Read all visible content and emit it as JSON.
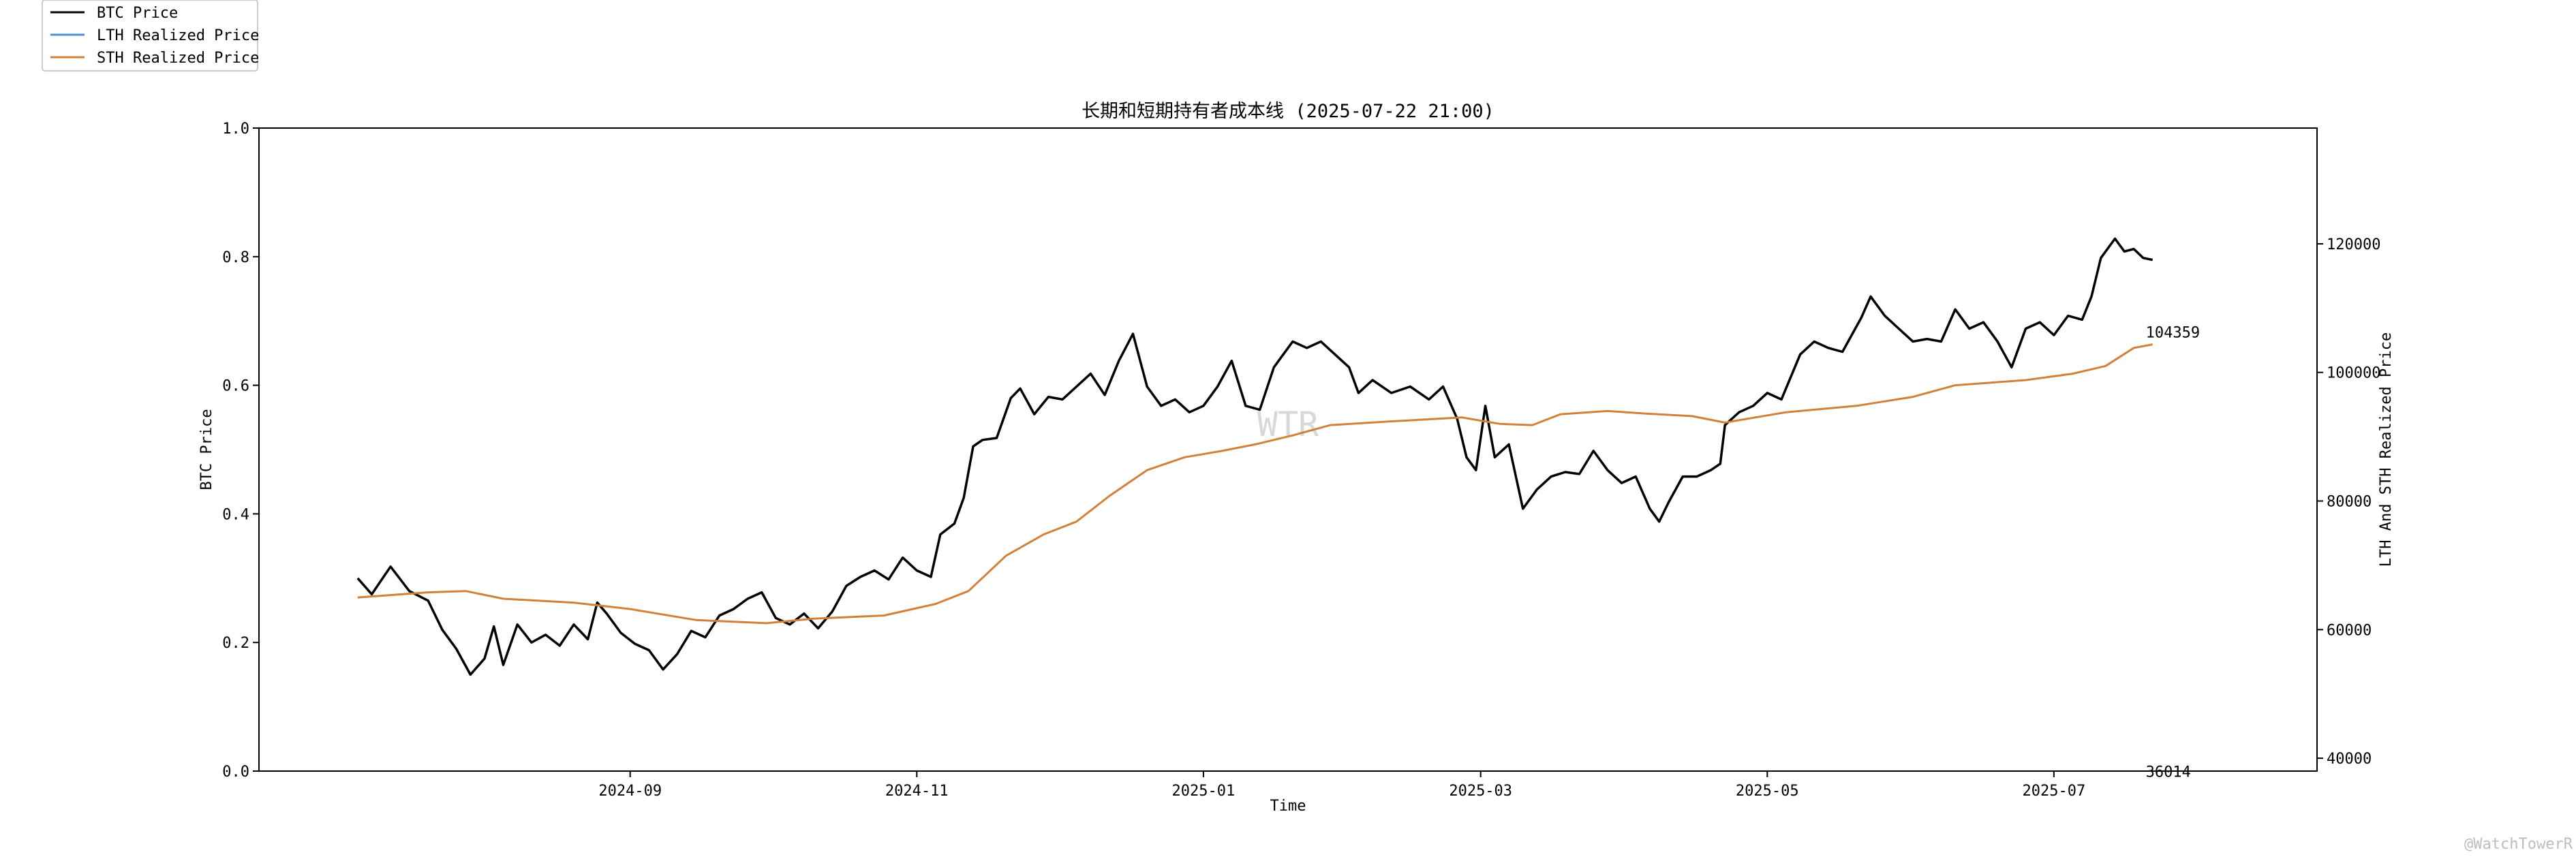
{
  "chart_data": {
    "type": "line",
    "title": "长期和短期持有者成本线 (2025-07-22 21:00)",
    "xlabel": "Time",
    "ylabel_left": "BTC Price",
    "ylabel_right": "LTH And STH Realized Price",
    "left_ylim": [
      0.0,
      1.0
    ],
    "left_yticks": [
      "0.0",
      "0.2",
      "0.4",
      "0.6",
      "0.8",
      "1.0"
    ],
    "right_ylim": [
      38000,
      138000
    ],
    "right_yticks": [
      40000,
      60000,
      80000,
      100000,
      120000
    ],
    "x_range": [
      "2024-06-14",
      "2025-08-26"
    ],
    "x_ticks": [
      "2024-09",
      "2024-11",
      "2025-01",
      "2025-03",
      "2025-05",
      "2025-07"
    ],
    "grid": false,
    "legend_position": "top-left",
    "watermark": "WTR",
    "credit": "@WatchTowerR",
    "annotations": [
      {
        "text": "104359",
        "date": "2025-07-22",
        "value": 104359,
        "series": "STH Realized Price"
      },
      {
        "text": "36014",
        "date": "2025-07-22",
        "value": 36014,
        "series": "LTH Realized Price"
      }
    ],
    "series": [
      {
        "name": "BTC Price",
        "color": "#000000",
        "points": [
          [
            "2024-07-05",
            68000
          ],
          [
            "2024-07-08",
            65500
          ],
          [
            "2024-07-12",
            69800
          ],
          [
            "2024-07-16",
            66000
          ],
          [
            "2024-07-20",
            64500
          ],
          [
            "2024-07-23",
            60000
          ],
          [
            "2024-07-26",
            57000
          ],
          [
            "2024-07-29",
            53000
          ],
          [
            "2024-08-01",
            55500
          ],
          [
            "2024-08-03",
            60500
          ],
          [
            "2024-08-05",
            54500
          ],
          [
            "2024-08-08",
            60800
          ],
          [
            "2024-08-11",
            58000
          ],
          [
            "2024-08-14",
            59200
          ],
          [
            "2024-08-17",
            57500
          ],
          [
            "2024-08-20",
            60800
          ],
          [
            "2024-08-23",
            58500
          ],
          [
            "2024-08-25",
            64200
          ],
          [
            "2024-08-27",
            62500
          ],
          [
            "2024-08-30",
            59500
          ],
          [
            "2024-09-02",
            57800
          ],
          [
            "2024-09-05",
            56800
          ],
          [
            "2024-09-08",
            53800
          ],
          [
            "2024-09-11",
            56200
          ],
          [
            "2024-09-14",
            59800
          ],
          [
            "2024-09-17",
            58800
          ],
          [
            "2024-09-20",
            62200
          ],
          [
            "2024-09-23",
            63200
          ],
          [
            "2024-09-26",
            64800
          ],
          [
            "2024-09-29",
            65800
          ],
          [
            "2024-10-02",
            61800
          ],
          [
            "2024-10-05",
            60800
          ],
          [
            "2024-10-08",
            62500
          ],
          [
            "2024-10-11",
            60200
          ],
          [
            "2024-10-14",
            62800
          ],
          [
            "2024-10-17",
            66800
          ],
          [
            "2024-10-20",
            68200
          ],
          [
            "2024-10-23",
            69200
          ],
          [
            "2024-10-26",
            67800
          ],
          [
            "2024-10-29",
            71200
          ],
          [
            "2024-11-01",
            69200
          ],
          [
            "2024-11-04",
            68200
          ],
          [
            "2024-11-06",
            74800
          ],
          [
            "2024-11-09",
            76500
          ],
          [
            "2024-11-11",
            80500
          ],
          [
            "2024-11-13",
            88500
          ],
          [
            "2024-11-15",
            89500
          ],
          [
            "2024-11-18",
            89800
          ],
          [
            "2024-11-21",
            96000
          ],
          [
            "2024-11-23",
            97500
          ],
          [
            "2024-11-26",
            93500
          ],
          [
            "2024-11-29",
            96200
          ],
          [
            "2024-12-02",
            95800
          ],
          [
            "2024-12-05",
            97800
          ],
          [
            "2024-12-08",
            99800
          ],
          [
            "2024-12-11",
            96500
          ],
          [
            "2024-12-14",
            101800
          ],
          [
            "2024-12-17",
            106000
          ],
          [
            "2024-12-20",
            97800
          ],
          [
            "2024-12-23",
            94800
          ],
          [
            "2024-12-26",
            95800
          ],
          [
            "2024-12-29",
            93800
          ],
          [
            "2025-01-01",
            94800
          ],
          [
            "2025-01-04",
            97800
          ],
          [
            "2025-01-07",
            101800
          ],
          [
            "2025-01-10",
            94800
          ],
          [
            "2025-01-13",
            94200
          ],
          [
            "2025-01-16",
            100800
          ],
          [
            "2025-01-20",
            104800
          ],
          [
            "2025-01-23",
            103800
          ],
          [
            "2025-01-26",
            104800
          ],
          [
            "2025-01-29",
            102800
          ],
          [
            "2025-02-01",
            100800
          ],
          [
            "2025-02-03",
            96800
          ],
          [
            "2025-02-06",
            98800
          ],
          [
            "2025-02-10",
            96800
          ],
          [
            "2025-02-14",
            97800
          ],
          [
            "2025-02-18",
            95800
          ],
          [
            "2025-02-21",
            97800
          ],
          [
            "2025-02-24",
            92800
          ],
          [
            "2025-02-26",
            86800
          ],
          [
            "2025-02-28",
            84800
          ],
          [
            "2025-03-02",
            94800
          ],
          [
            "2025-03-04",
            86800
          ],
          [
            "2025-03-07",
            88800
          ],
          [
            "2025-03-10",
            78800
          ],
          [
            "2025-03-13",
            81800
          ],
          [
            "2025-03-16",
            83800
          ],
          [
            "2025-03-19",
            84500
          ],
          [
            "2025-03-22",
            84200
          ],
          [
            "2025-03-25",
            87800
          ],
          [
            "2025-03-28",
            84800
          ],
          [
            "2025-03-31",
            82800
          ],
          [
            "2025-04-03",
            83800
          ],
          [
            "2025-04-06",
            78800
          ],
          [
            "2025-04-08",
            76800
          ],
          [
            "2025-04-10",
            79800
          ],
          [
            "2025-04-13",
            83800
          ],
          [
            "2025-04-16",
            83800
          ],
          [
            "2025-04-19",
            84800
          ],
          [
            "2025-04-21",
            85800
          ],
          [
            "2025-04-22",
            91800
          ],
          [
            "2025-04-25",
            93800
          ],
          [
            "2025-04-28",
            94800
          ],
          [
            "2025-05-01",
            96800
          ],
          [
            "2025-05-04",
            95800
          ],
          [
            "2025-05-08",
            102800
          ],
          [
            "2025-05-11",
            104800
          ],
          [
            "2025-05-14",
            103800
          ],
          [
            "2025-05-17",
            103200
          ],
          [
            "2025-05-21",
            108500
          ],
          [
            "2025-05-23",
            111800
          ],
          [
            "2025-05-26",
            108800
          ],
          [
            "2025-05-29",
            106800
          ],
          [
            "2025-06-01",
            104800
          ],
          [
            "2025-06-04",
            105200
          ],
          [
            "2025-06-07",
            104800
          ],
          [
            "2025-06-10",
            109800
          ],
          [
            "2025-06-13",
            106800
          ],
          [
            "2025-06-16",
            107800
          ],
          [
            "2025-06-19",
            104800
          ],
          [
            "2025-06-22",
            100800
          ],
          [
            "2025-06-25",
            106800
          ],
          [
            "2025-06-28",
            107800
          ],
          [
            "2025-07-01",
            105800
          ],
          [
            "2025-07-04",
            108800
          ],
          [
            "2025-07-07",
            108200
          ],
          [
            "2025-07-09",
            111800
          ],
          [
            "2025-07-11",
            117800
          ],
          [
            "2025-07-14",
            120800
          ],
          [
            "2025-07-16",
            118800
          ],
          [
            "2025-07-18",
            119200
          ],
          [
            "2025-07-20",
            117800
          ],
          [
            "2025-07-22",
            117500
          ]
        ]
      },
      {
        "name": "LTH Realized Price",
        "color": "#4a90d9",
        "points": []
      },
      {
        "name": "STH Realized Price",
        "color": "#d2803a",
        "points": [
          [
            "2024-07-05",
            65000
          ],
          [
            "2024-07-20",
            65800
          ],
          [
            "2024-07-28",
            66000
          ],
          [
            "2024-08-05",
            64800
          ],
          [
            "2024-08-20",
            64200
          ],
          [
            "2024-09-01",
            63200
          ],
          [
            "2024-09-15",
            61500
          ],
          [
            "2024-09-30",
            61000
          ],
          [
            "2024-10-10",
            61700
          ],
          [
            "2024-10-25",
            62200
          ],
          [
            "2024-11-05",
            64000
          ],
          [
            "2024-11-12",
            66000
          ],
          [
            "2024-11-20",
            71500
          ],
          [
            "2024-11-28",
            74800
          ],
          [
            "2024-12-05",
            76800
          ],
          [
            "2024-12-12",
            80800
          ],
          [
            "2024-12-20",
            84800
          ],
          [
            "2024-12-28",
            86800
          ],
          [
            "2025-01-05",
            87800
          ],
          [
            "2025-01-12",
            88800
          ],
          [
            "2025-01-20",
            90200
          ],
          [
            "2025-01-28",
            91800
          ],
          [
            "2025-02-08",
            92300
          ],
          [
            "2025-02-20",
            92800
          ],
          [
            "2025-02-25",
            93000
          ],
          [
            "2025-03-05",
            92000
          ],
          [
            "2025-03-12",
            91800
          ],
          [
            "2025-03-18",
            93500
          ],
          [
            "2025-03-28",
            94000
          ],
          [
            "2025-04-05",
            93600
          ],
          [
            "2025-04-15",
            93200
          ],
          [
            "2025-04-22",
            92200
          ],
          [
            "2025-05-05",
            93800
          ],
          [
            "2025-05-20",
            94800
          ],
          [
            "2025-06-01",
            96200
          ],
          [
            "2025-06-10",
            98000
          ],
          [
            "2025-06-25",
            98800
          ],
          [
            "2025-07-05",
            99800
          ],
          [
            "2025-07-12",
            101000
          ],
          [
            "2025-07-18",
            103800
          ],
          [
            "2025-07-22",
            104359
          ]
        ]
      }
    ]
  }
}
